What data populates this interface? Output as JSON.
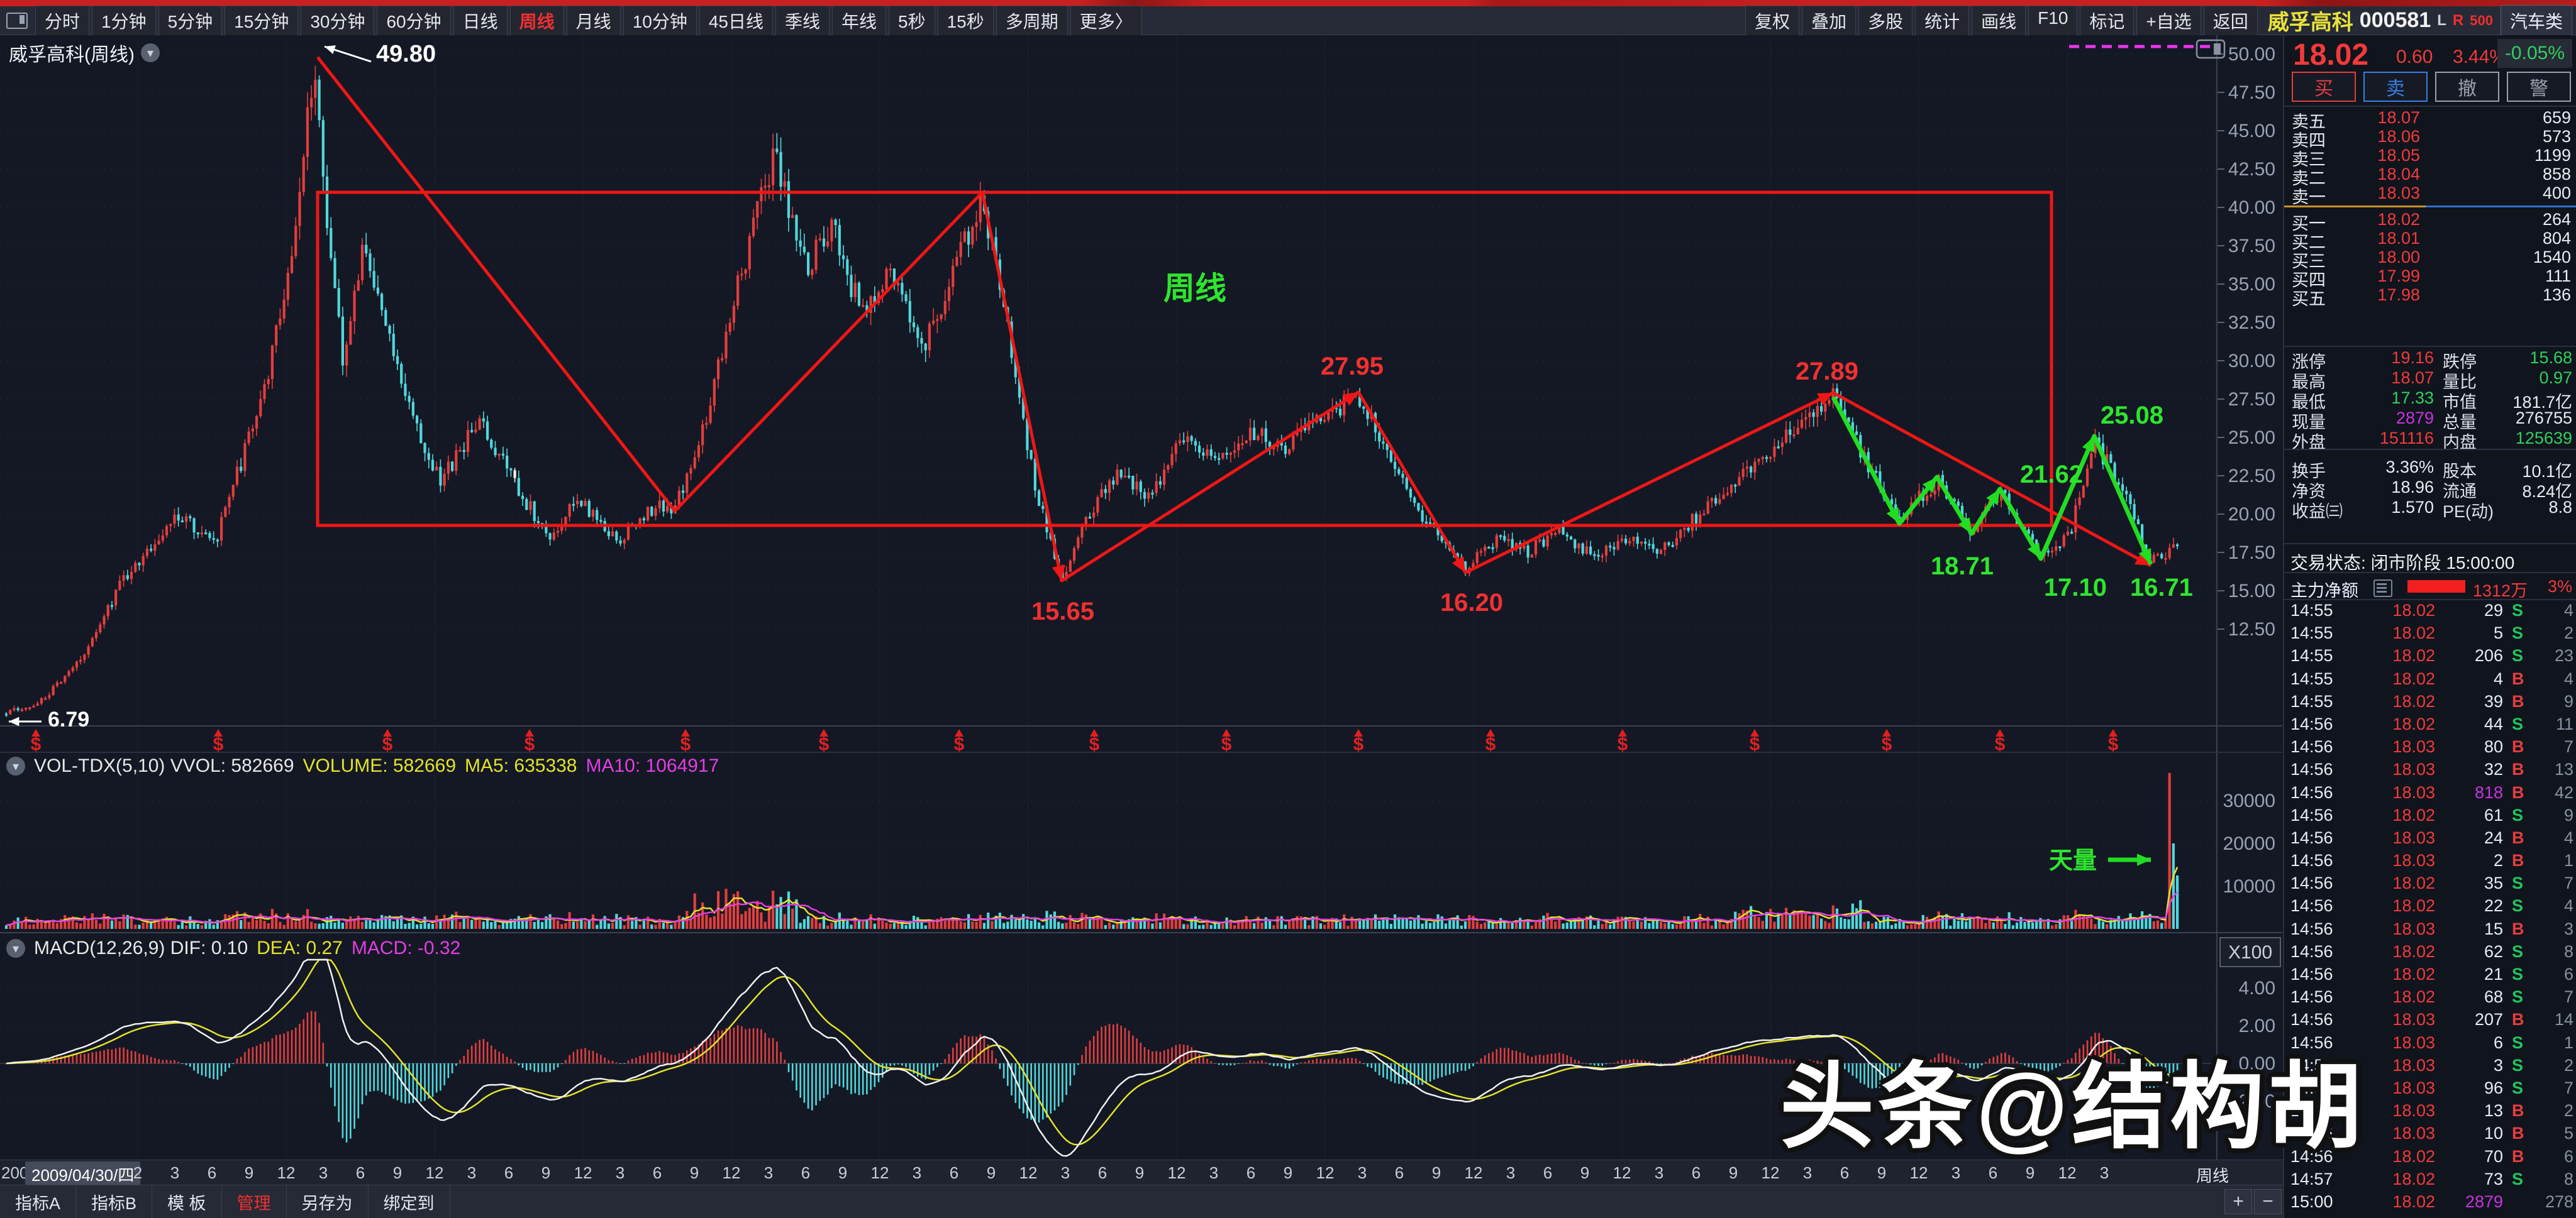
{
  "toolbar": {
    "periods": [
      {
        "label": "分时"
      },
      {
        "label": "1分钟"
      },
      {
        "label": "5分钟"
      },
      {
        "label": "15分钟"
      },
      {
        "label": "30分钟"
      },
      {
        "label": "60分钟"
      },
      {
        "label": "日线"
      },
      {
        "label": "周线",
        "active": true
      },
      {
        "label": "月线"
      },
      {
        "label": "10分钟"
      },
      {
        "label": "45日线"
      },
      {
        "label": "季线"
      },
      {
        "label": "年线"
      },
      {
        "label": "5秒"
      },
      {
        "label": "15秒"
      },
      {
        "label": "多周期"
      },
      {
        "label": "更多〉"
      }
    ],
    "actions": [
      "复权",
      "叠加",
      "多股",
      "统计",
      "画线",
      "F10",
      "标记",
      "+自选",
      "返回"
    ],
    "stock_name": "威孚高科",
    "stock_code": "000581",
    "flag_l": "L",
    "flag_r": "R",
    "flag_500": "500",
    "category": "汽车类"
  },
  "chart": {
    "title": "威孚高科(周线)",
    "vol_header": [
      {
        "text": "VOL-TDX(5,10)  VVOL: 582669",
        "color": "#e8e8e8"
      },
      {
        "text": "VOLUME: 582669",
        "color": "#e3e32b"
      },
      {
        "text": "MA5: 635338",
        "color": "#e3e32b"
      },
      {
        "text": "MA10: 1064917",
        "color": "#e23ee2"
      }
    ],
    "macd_header": [
      {
        "text": "MACD(12,26,9)  DIF: 0.10",
        "color": "#e8e8e8"
      },
      {
        "text": "DEA: 0.27",
        "color": "#e3e32b"
      },
      {
        "text": "MACD: -0.32",
        "color": "#e23ee2"
      }
    ],
    "watermark": "头条@结构胡",
    "volume_unit": "X100",
    "period_label": "周线"
  },
  "chart_data": {
    "type": "candlestick",
    "period": "weekly",
    "title": "威孚高科(周线)",
    "price_axis": [
      "50.00",
      "47.50",
      "45.00",
      "42.50",
      "40.00",
      "37.50",
      "35.00",
      "32.50",
      "30.00",
      "27.50",
      "25.00",
      "22.50",
      "20.00",
      "17.50",
      "15.00",
      "12.50"
    ],
    "volume_axis": [
      30000,
      20000,
      10000
    ],
    "macd_axis": [
      4.0,
      2.0,
      0.0,
      -2.0
    ],
    "ylim": [
      6.45,
      51.2
    ],
    "grid": true,
    "price_anchors": [
      [
        8,
        7.0
      ],
      [
        60,
        7.6
      ],
      [
        120,
        10
      ],
      [
        200,
        16
      ],
      [
        280,
        20
      ],
      [
        340,
        18
      ],
      [
        420,
        28
      ],
      [
        468,
        38
      ],
      [
        500,
        49.8
      ],
      [
        522,
        38
      ],
      [
        545,
        30
      ],
      [
        575,
        37
      ],
      [
        610,
        33
      ],
      [
        660,
        26
      ],
      [
        700,
        22
      ],
      [
        760,
        26
      ],
      [
        820,
        22
      ],
      [
        870,
        18.5
      ],
      [
        920,
        21
      ],
      [
        980,
        18.2
      ],
      [
        1040,
        20.5
      ],
      [
        1073,
        20.2
      ],
      [
        1120,
        26
      ],
      [
        1180,
        36
      ],
      [
        1230,
        43.5
      ],
      [
        1280,
        36
      ],
      [
        1320,
        39
      ],
      [
        1370,
        33
      ],
      [
        1420,
        36
      ],
      [
        1470,
        31
      ],
      [
        1520,
        36
      ],
      [
        1562,
        41
      ],
      [
        1610,
        30
      ],
      [
        1650,
        21
      ],
      [
        1688,
        15.8
      ],
      [
        1730,
        20
      ],
      [
        1780,
        23
      ],
      [
        1830,
        21
      ],
      [
        1880,
        25
      ],
      [
        1930,
        23.5
      ],
      [
        1990,
        25.5
      ],
      [
        2040,
        24
      ],
      [
        2090,
        26
      ],
      [
        2160,
        27.8
      ],
      [
        2210,
        24
      ],
      [
        2260,
        20
      ],
      [
        2330,
        16.4
      ],
      [
        2380,
        18.5
      ],
      [
        2430,
        17.5
      ],
      [
        2480,
        19
      ],
      [
        2530,
        17.2
      ],
      [
        2580,
        18.5
      ],
      [
        2640,
        17.6
      ],
      [
        2700,
        20
      ],
      [
        2760,
        22
      ],
      [
        2820,
        24.5
      ],
      [
        2880,
        26.5
      ],
      [
        2915,
        27.7
      ],
      [
        2960,
        24
      ],
      [
        3020,
        19.8
      ],
      [
        3080,
        22.2
      ],
      [
        3135,
        18.9
      ],
      [
        3180,
        21.4
      ],
      [
        3245,
        17.3
      ],
      [
        3290,
        18.5
      ],
      [
        3330,
        24.9
      ],
      [
        3380,
        21
      ],
      [
        3420,
        16.9
      ],
      [
        3465,
        18.0
      ]
    ],
    "white_candle_index": 130,
    "volume_spikes": {
      "553": 36500,
      "554": 20000,
      "555": 12500
    },
    "annotations": {
      "labels": [
        {
          "text": "49.80",
          "color": "#ffffff",
          "x": 598,
          "y": 42,
          "size": 38,
          "anchor": "start"
        },
        {
          "text": "周线",
          "color": "#2ee52e",
          "x": 1900,
          "y": 420,
          "size": 50,
          "anchor": "middle"
        },
        {
          "text": "27.95",
          "color": "#f23030",
          "x": 2150,
          "y": 540,
          "size": 40,
          "anchor": "middle"
        },
        {
          "text": "15.65",
          "color": "#f23030",
          "x": 1690,
          "y": 930,
          "size": 40,
          "anchor": "middle"
        },
        {
          "text": "16.20",
          "color": "#f23030",
          "x": 2340,
          "y": 916,
          "size": 40,
          "anchor": "middle"
        },
        {
          "text": "27.89",
          "color": "#f23030",
          "x": 2905,
          "y": 548,
          "size": 40,
          "anchor": "middle"
        },
        {
          "text": "25.08",
          "color": "#2ee52e",
          "x": 3390,
          "y": 618,
          "size": 40,
          "anchor": "middle"
        },
        {
          "text": "21.62",
          "color": "#2ee52e",
          "x": 3262,
          "y": 712,
          "size": 40,
          "anchor": "middle"
        },
        {
          "text": "18.71",
          "color": "#2ee52e",
          "x": 3120,
          "y": 858,
          "size": 40,
          "anchor": "middle"
        },
        {
          "text": "17.10",
          "color": "#2ee52e",
          "x": 3300,
          "y": 892,
          "size": 40,
          "anchor": "middle"
        },
        {
          "text": "16.71",
          "color": "#2ee52e",
          "x": 3437,
          "y": 892,
          "size": 40,
          "anchor": "middle"
        },
        {
          "text": "6.79",
          "color": "#ffffff",
          "x": 76,
          "y": 1100,
          "size": 34,
          "anchor": "start"
        },
        {
          "text": "天量",
          "color": "#2ee52e",
          "x": 3296,
          "y": 1326,
          "size": 38,
          "anchor": "middle"
        }
      ],
      "red_box": [
        505,
        250,
        3262,
        780
      ],
      "red_polyline": [
        [
          505,
          35
        ],
        [
          1073,
          757
        ],
        [
          1562,
          250
        ],
        [
          1688,
          868
        ],
        [
          2160,
          568
        ],
        [
          2330,
          855
        ],
        [
          2915,
          569
        ],
        [
          3420,
          844
        ]
      ],
      "red_arrow_vertices": [
        3,
        4,
        5,
        6,
        7
      ],
      "green_polyline": [
        [
          2915,
          576
        ],
        [
          3020,
          777
        ],
        [
          3080,
          703
        ],
        [
          3135,
          793
        ],
        [
          3180,
          722
        ],
        [
          3245,
          833
        ],
        [
          3330,
          638
        ],
        [
          3420,
          842
        ]
      ],
      "white_arrow_4980": [
        [
          590,
          42
        ],
        [
          516,
          18
        ]
      ],
      "white_arrow_679": [
        [
          66,
          1092
        ],
        [
          14,
          1092
        ]
      ],
      "tianliang_arrow": [
        [
          3352,
          1312
        ],
        [
          3420,
          1312
        ]
      ],
      "magenta_dashed": [
        3290,
        18,
        3520,
        18
      ],
      "dividend_marker": "$",
      "dividend_marker_x": [
        57,
        347,
        616,
        842,
        1090,
        1310,
        1525,
        1740,
        1950,
        2160,
        2370,
        2580,
        2790,
        3000,
        3180,
        3360
      ]
    },
    "date_axis": {
      "prefix": "200",
      "highlight": "2009/04/30/四",
      "tick_start_x": 219,
      "tick_step": 59,
      "ticks": [
        "2",
        "3",
        "6",
        "9",
        "12",
        "3",
        "6",
        "9",
        "12",
        "3",
        "6",
        "9",
        "12",
        "3",
        "6",
        "9",
        "12",
        "3",
        "6",
        "9",
        "12",
        "3",
        "6",
        "9",
        "12",
        "3",
        "6",
        "9",
        "12",
        "3",
        "6",
        "9",
        "12",
        "3",
        "6",
        "9",
        "12",
        "3",
        "6",
        "9",
        "12",
        "3",
        "6",
        "9",
        "12",
        "3",
        "6",
        "9",
        "12",
        "3",
        "6",
        "9",
        "12",
        "3"
      ]
    },
    "colors": {
      "up": "#e23e3e",
      "down": "#4fd8dc",
      "ma5": "#e3e32b",
      "ma10": "#e23ee2",
      "dif": "#f0f0f0",
      "dea": "#e3e32b",
      "annotation_red": "#f01616",
      "annotation_green": "#22dd22"
    }
  },
  "right_panel": {
    "price": "18.02",
    "change": "0.60",
    "change_pct": "3.44%",
    "index_change": "-0.05%",
    "buttons": [
      {
        "label": "买",
        "color": "#e03e3e"
      },
      {
        "label": "卖",
        "color": "#3b7fe0"
      },
      {
        "label": "撤",
        "color": "#9aa0ad"
      },
      {
        "label": "警",
        "color": "#9aa0ad"
      }
    ],
    "sell_levels": [
      {
        "name": "卖五",
        "price": "18.07",
        "vol": "659"
      },
      {
        "name": "卖四",
        "price": "18.06",
        "vol": "573"
      },
      {
        "name": "卖三",
        "price": "18.05",
        "vol": "1199"
      },
      {
        "name": "卖二",
        "price": "18.04",
        "vol": "858"
      },
      {
        "name": "卖一",
        "price": "18.03",
        "vol": "400"
      }
    ],
    "buy_levels": [
      {
        "name": "买一",
        "price": "18.02",
        "vol": "264"
      },
      {
        "name": "买二",
        "price": "18.01",
        "vol": "804"
      },
      {
        "name": "买三",
        "price": "18.00",
        "vol": "1540"
      },
      {
        "name": "买四",
        "price": "17.99",
        "vol": "111"
      },
      {
        "name": "买五",
        "price": "17.98",
        "vol": "136"
      }
    ],
    "stats": [
      {
        "l1": "涨停",
        "v1": "19.16",
        "c1": "#f23a3a",
        "l2": "跌停",
        "v2": "15.68",
        "c2": "#2fd05f"
      },
      {
        "l1": "最高",
        "v1": "18.07",
        "c1": "#f23a3a",
        "l2": "量比",
        "v2": "0.97",
        "c2": "#2fd05f"
      },
      {
        "l1": "最低",
        "v1": "17.33",
        "c1": "#2fd05f",
        "l2": "市值",
        "v2": "181.7亿",
        "c2": "#e8ebf2"
      },
      {
        "l1": "现量",
        "v1": "2879",
        "c1": "#c633e0",
        "l2": "总量",
        "v2": "276755",
        "c2": "#e8ebf2"
      },
      {
        "l1": "外盘",
        "v1": "151116",
        "c1": "#f23a3a",
        "l2": "内盘",
        "v2": "125639",
        "c2": "#2fd05f"
      },
      {
        "l1": "换手",
        "v1": "3.36%",
        "c1": "#e8ebf2",
        "l2": "股本",
        "v2": "10.1亿",
        "c2": "#e8ebf2"
      },
      {
        "l1": "净资",
        "v1": "18.96",
        "c1": "#e8ebf2",
        "l2": "流通",
        "v2": "8.24亿",
        "c2": "#e8ebf2"
      },
      {
        "l1": "收益㈢",
        "v1": "1.570",
        "c1": "#e8ebf2",
        "l2": "PE(动)",
        "v2": "8.8",
        "c2": "#e8ebf2"
      }
    ],
    "trade_status": "交易状态: 闭市阶段 15:00:00",
    "main_net": {
      "label": "主力净额",
      "value": "1312万",
      "pct": "3%"
    },
    "trades": [
      {
        "time": "14:55",
        "price": "18.02",
        "vol": "29",
        "vc": "#e8ebf2",
        "side": "S",
        "count": "4"
      },
      {
        "time": "14:55",
        "price": "18.02",
        "vol": "5",
        "vc": "#e8ebf2",
        "side": "S",
        "count": "2"
      },
      {
        "time": "14:55",
        "price": "18.02",
        "vol": "206",
        "vc": "#e8ebf2",
        "side": "S",
        "count": "23"
      },
      {
        "time": "14:55",
        "price": "18.02",
        "vol": "4",
        "vc": "#e8ebf2",
        "side": "B",
        "count": "4"
      },
      {
        "time": "14:55",
        "price": "18.02",
        "vol": "39",
        "vc": "#e8ebf2",
        "side": "B",
        "count": "9"
      },
      {
        "time": "14:56",
        "price": "18.02",
        "vol": "44",
        "vc": "#e8ebf2",
        "side": "S",
        "count": "11"
      },
      {
        "time": "14:56",
        "price": "18.03",
        "vol": "80",
        "vc": "#e8ebf2",
        "side": "B",
        "count": "7"
      },
      {
        "time": "14:56",
        "price": "18.03",
        "vol": "32",
        "vc": "#e8ebf2",
        "side": "B",
        "count": "13"
      },
      {
        "time": "14:56",
        "price": "18.03",
        "vol": "818",
        "vc": "#c633e0",
        "side": "B",
        "count": "42"
      },
      {
        "time": "14:56",
        "price": "18.02",
        "vol": "61",
        "vc": "#e8ebf2",
        "side": "S",
        "count": "9"
      },
      {
        "time": "14:56",
        "price": "18.03",
        "vol": "24",
        "vc": "#e8ebf2",
        "side": "B",
        "count": "4"
      },
      {
        "time": "14:56",
        "price": "18.03",
        "vol": "2",
        "vc": "#e8ebf2",
        "side": "B",
        "count": "1"
      },
      {
        "time": "14:56",
        "price": "18.02",
        "vol": "35",
        "vc": "#e8ebf2",
        "side": "S",
        "count": "7"
      },
      {
        "time": "14:56",
        "price": "18.02",
        "vol": "22",
        "vc": "#e8ebf2",
        "side": "S",
        "count": "4"
      },
      {
        "time": "14:56",
        "price": "18.03",
        "vol": "15",
        "vc": "#e8ebf2",
        "side": "B",
        "count": "3"
      },
      {
        "time": "14:56",
        "price": "18.02",
        "vol": "62",
        "vc": "#e8ebf2",
        "side": "S",
        "count": "8"
      },
      {
        "time": "14:56",
        "price": "18.02",
        "vol": "21",
        "vc": "#e8ebf2",
        "side": "S",
        "count": "6"
      },
      {
        "time": "14:56",
        "price": "18.02",
        "vol": "68",
        "vc": "#e8ebf2",
        "side": "S",
        "count": "7"
      },
      {
        "time": "14:56",
        "price": "18.03",
        "vol": "207",
        "vc": "#e8ebf2",
        "side": "B",
        "count": "14"
      },
      {
        "time": "14:56",
        "price": "18.03",
        "vol": "6",
        "vc": "#e8ebf2",
        "side": "S",
        "count": "1"
      },
      {
        "time": "14:56",
        "price": "18.03",
        "vol": "3",
        "vc": "#e8ebf2",
        "side": "S",
        "count": "2"
      },
      {
        "time": "14:56",
        "price": "18.03",
        "vol": "96",
        "vc": "#e8ebf2",
        "side": "S",
        "count": "7"
      },
      {
        "time": "14:56",
        "price": "18.03",
        "vol": "13",
        "vc": "#e8ebf2",
        "side": "B",
        "count": "2"
      },
      {
        "time": "14:56",
        "price": "18.03",
        "vol": "10",
        "vc": "#e8ebf2",
        "side": "B",
        "count": "5"
      },
      {
        "time": "14:56",
        "price": "18.02",
        "vol": "70",
        "vc": "#e8ebf2",
        "side": "B",
        "count": "6"
      },
      {
        "time": "14:57",
        "price": "18.02",
        "vol": "73",
        "vc": "#e8ebf2",
        "side": "S",
        "count": "8"
      },
      {
        "time": "15:00",
        "price": "18.02",
        "vol": "2879",
        "vc": "#c633e0",
        "side": "",
        "count": "278"
      }
    ]
  },
  "bottom": {
    "tabs": [
      {
        "label": "指标A"
      },
      {
        "label": "指标B"
      },
      {
        "label": "模 板"
      },
      {
        "label": "管理",
        "active": true
      },
      {
        "label": "另存为"
      },
      {
        "label": "绑定到"
      }
    ],
    "zoom_in": "+",
    "zoom_out": "−"
  }
}
